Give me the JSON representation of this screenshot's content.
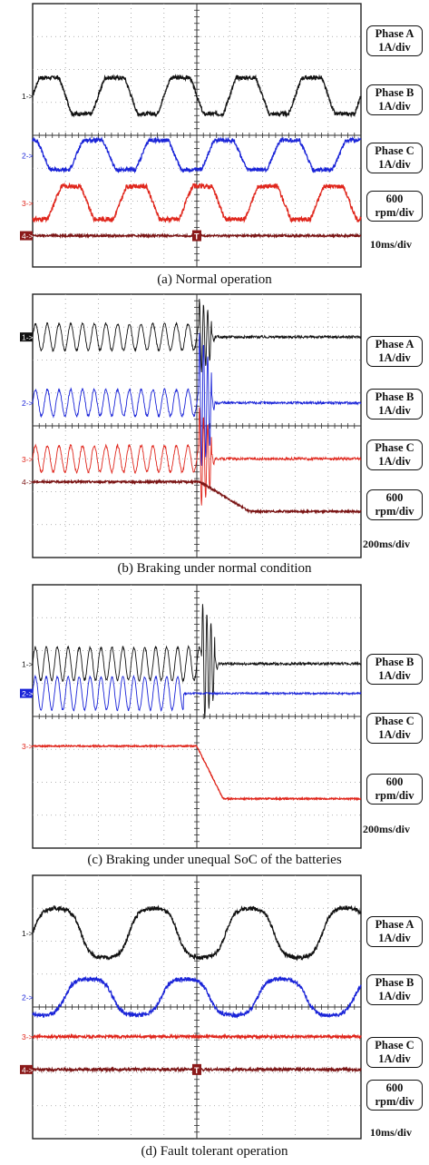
{
  "chart_data": [
    {
      "type": "line",
      "title": "(a) Normal operation",
      "channels": [
        {
          "marker": "1",
          "name": "Phase A",
          "scale": "1A/div",
          "color": "#111111",
          "shape": "sine",
          "cycles": 5.0,
          "amp_div": 0.55,
          "level_div": 2.8,
          "noise": 0.06,
          "clip": "square"
        },
        {
          "marker": "2",
          "name": "Phase B",
          "scale": "1A/div",
          "color": "#1a24d8",
          "shape": "sine",
          "cycles": 5.0,
          "amp_div": 0.45,
          "level_div": 4.6,
          "noise": 0.06,
          "clip": "square"
        },
        {
          "marker": "3",
          "name": "Phase C",
          "scale": "1A/div",
          "color": "#e0261c",
          "shape": "sine",
          "cycles": 5.0,
          "amp_div": 0.5,
          "level_div": 6.05,
          "noise": 0.07,
          "clip": "square"
        },
        {
          "marker": "4",
          "name": "Speed",
          "scale_lines": [
            "600",
            "rpm/div"
          ],
          "color": "#7a1414",
          "shape": "flat",
          "level_div": 7.05,
          "noise": 0.03
        }
      ],
      "time_scale": "10ms/div",
      "trigger_marker": "T",
      "grid": true
    },
    {
      "type": "line",
      "title": "(b) Braking under normal condition",
      "channels": [
        {
          "marker": "1",
          "name": "Phase A",
          "scale": "1A/div",
          "color": "#111111",
          "shape": "burst",
          "cycles": 28,
          "amp_div": 0.4,
          "level_div": 1.3,
          "end_frac": 0.505,
          "spike_div": 1.2,
          "noise": 0.04
        },
        {
          "marker": "2",
          "name": "Phase B",
          "scale": "1A/div",
          "color": "#1a24d8",
          "shape": "burst",
          "cycles": 28,
          "amp_div": 0.4,
          "level_div": 3.3,
          "end_frac": 0.505,
          "spike_div": 2.2,
          "noise": 0.04
        },
        {
          "marker": "3",
          "name": "Phase C",
          "scale": "1A/div",
          "color": "#e0261c",
          "shape": "burst",
          "cycles": 28,
          "amp_div": 0.4,
          "level_div": 5.0,
          "end_frac": 0.505,
          "spike_div": 1.6,
          "noise": 0.04
        },
        {
          "marker": "4",
          "name": "Speed",
          "scale_lines": [
            "600",
            "rpm/div"
          ],
          "color": "#7a1414",
          "shape": "ramp",
          "level_div": 5.7,
          "end_level_div": 6.6,
          "ramp_start_frac": 0.51,
          "ramp_end_frac": 0.66,
          "noise": 0.03
        }
      ],
      "time_scale": "200ms/div",
      "trigger_marker": "",
      "grid": true
    },
    {
      "type": "line",
      "title": "(c) Braking under unequal SoC of the batteries",
      "channels": [
        {
          "marker": "1",
          "name": "Phase B",
          "scale": "1A/div",
          "color": "#111111",
          "shape": "burst",
          "cycles": 30,
          "amp_div": 0.5,
          "level_div": 2.4,
          "end_frac": 0.515,
          "spike_div": 1.9,
          "noise": 0.04
        },
        {
          "marker": "2",
          "name": "Phase C",
          "scale": "1A/div",
          "color": "#1a24d8",
          "shape": "burst",
          "cycles": 30,
          "amp_div": 0.5,
          "level_div": 3.3,
          "end_frac": 0.46,
          "spike_div": 0,
          "noise": 0.03
        },
        {
          "marker": "3",
          "name": "Speed",
          "scale_lines": [
            "600",
            "rpm/div"
          ],
          "color": "#e0261c",
          "shape": "ramp",
          "level_div": 4.9,
          "end_level_div": 6.5,
          "ramp_start_frac": 0.5,
          "ramp_end_frac": 0.58,
          "noise": 0.02
        }
      ],
      "time_scale": "200ms/div",
      "trigger_marker": "",
      "grid": true
    },
    {
      "type": "line",
      "title": "(d) Fault tolerant operation",
      "channels": [
        {
          "marker": "1",
          "name": "Phase A",
          "scale": "1A/div",
          "color": "#111111",
          "shape": "sine",
          "cycles": 3.4,
          "amp_div": 0.75,
          "level_div": 1.75,
          "noise": 0.06,
          "clip": "soft"
        },
        {
          "marker": "2",
          "name": "Phase B",
          "scale": "1A/div",
          "color": "#1a24d8",
          "shape": "sine",
          "cycles": 3.4,
          "amp_div": 0.55,
          "level_div": 3.7,
          "noise": 0.06,
          "clip": "soft",
          "phase": 2.1
        },
        {
          "marker": "3",
          "name": "Phase C",
          "scale": "1A/div",
          "color": "#e0261c",
          "shape": "flat",
          "level_div": 4.9,
          "noise": 0.04
        },
        {
          "marker": "4",
          "name": "Speed",
          "scale_lines": [
            "600",
            "rpm/div"
          ],
          "color": "#7a1414",
          "shape": "flat",
          "level_div": 5.9,
          "noise": 0.04
        }
      ],
      "time_scale": "10ms/div",
      "trigger_marker": "T",
      "grid": true
    }
  ]
}
